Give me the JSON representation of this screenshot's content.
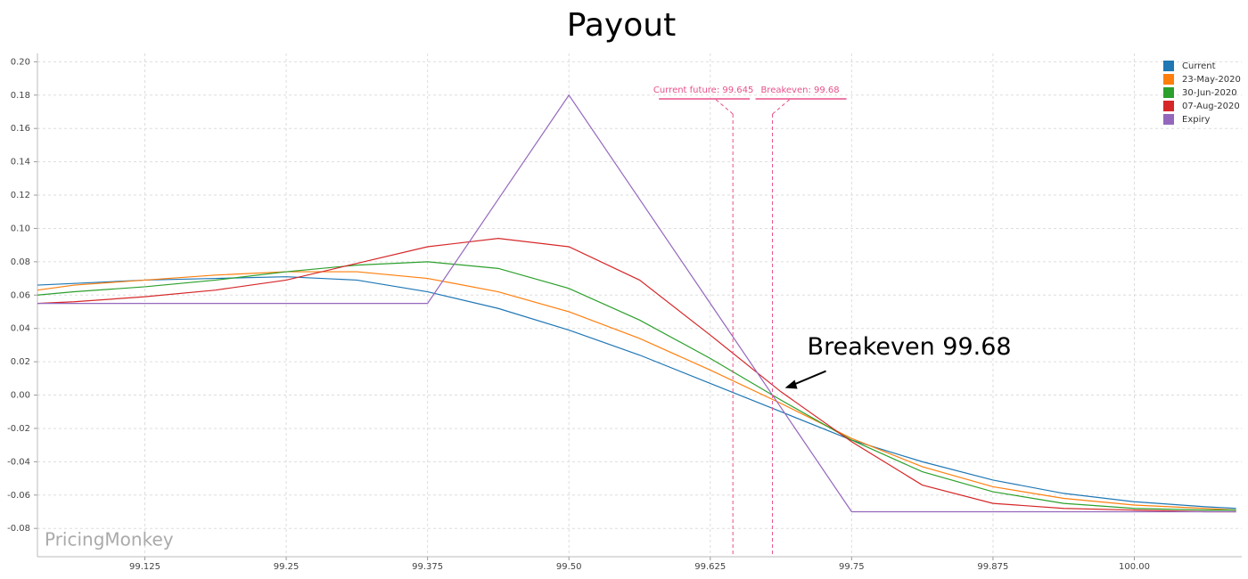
{
  "chart_data": {
    "type": "line",
    "title": "Payout",
    "x": [
      99.03,
      99.0625,
      99.125,
      99.1875,
      99.25,
      99.3125,
      99.375,
      99.4375,
      99.5,
      99.5625,
      99.625,
      99.6875,
      99.75,
      99.8125,
      99.875,
      99.9375,
      100.0,
      100.0625,
      100.09
    ],
    "series": [
      {
        "name": "Current",
        "color": "#1f77b4",
        "values": [
          0.066,
          0.067,
          0.069,
          0.07,
          0.071,
          0.069,
          0.062,
          0.052,
          0.039,
          0.024,
          0.007,
          -0.01,
          -0.027,
          -0.04,
          -0.051,
          -0.059,
          -0.064,
          -0.067,
          -0.068
        ]
      },
      {
        "name": "23-May-2020",
        "color": "#ff7f0e",
        "values": [
          0.063,
          0.066,
          0.069,
          0.072,
          0.074,
          0.074,
          0.07,
          0.062,
          0.05,
          0.034,
          0.015,
          -0.005,
          -0.026,
          -0.043,
          -0.055,
          -0.062,
          -0.066,
          -0.068,
          -0.069
        ]
      },
      {
        "name": "30-Jun-2020",
        "color": "#2ca02c",
        "values": [
          0.06,
          0.062,
          0.065,
          0.069,
          0.074,
          0.078,
          0.08,
          0.076,
          0.064,
          0.045,
          0.022,
          -0.003,
          -0.027,
          -0.046,
          -0.058,
          -0.065,
          -0.068,
          -0.069,
          -0.069
        ]
      },
      {
        "name": "07-Aug-2020",
        "color": "#d62728",
        "values": [
          0.055,
          0.056,
          0.059,
          0.063,
          0.069,
          0.079,
          0.089,
          0.094,
          0.089,
          0.069,
          0.036,
          0.002,
          -0.028,
          -0.054,
          -0.065,
          -0.068,
          -0.069,
          -0.07,
          -0.07
        ]
      },
      {
        "name": "Expiry",
        "color": "#9467bd",
        "values": [
          0.055,
          0.055,
          0.055,
          0.055,
          0.055,
          0.055,
          0.055,
          0.1175,
          0.18,
          0.1175,
          0.055,
          -0.0075,
          -0.07,
          -0.07,
          -0.07,
          -0.07,
          -0.07,
          -0.07,
          -0.07
        ]
      }
    ],
    "xlim": [
      99.03,
      100.095
    ],
    "xticks": [
      99.125,
      99.25,
      99.375,
      {
        "value": 99.5,
        "label": "99.50"
      },
      99.625,
      99.75,
      99.875,
      {
        "value": 100,
        "label": "100.00"
      }
    ],
    "ylim": [
      -0.097,
      0.205
    ],
    "yticks": [
      -0.08,
      -0.06,
      -0.04,
      -0.02,
      {
        "value": 0,
        "label": "0.00"
      },
      0.02,
      0.04,
      0.06,
      0.08,
      {
        "value": 0.1,
        "label": "0.10"
      },
      0.12,
      0.14,
      0.16,
      0.18,
      {
        "value": 0.2,
        "label": "0.20"
      }
    ],
    "grid": true,
    "legend": "top-right",
    "vlines": [
      {
        "value": 99.645,
        "label": "Current future: 99.645",
        "color": "#e8508a"
      },
      {
        "value": 99.68,
        "label": "Breakeven: 99.68",
        "color": "#e8508a"
      }
    ],
    "annotation": {
      "text": "Breakeven 99.68",
      "x": 99.68,
      "y": 0
    },
    "watermark": "PricingMonkey"
  }
}
